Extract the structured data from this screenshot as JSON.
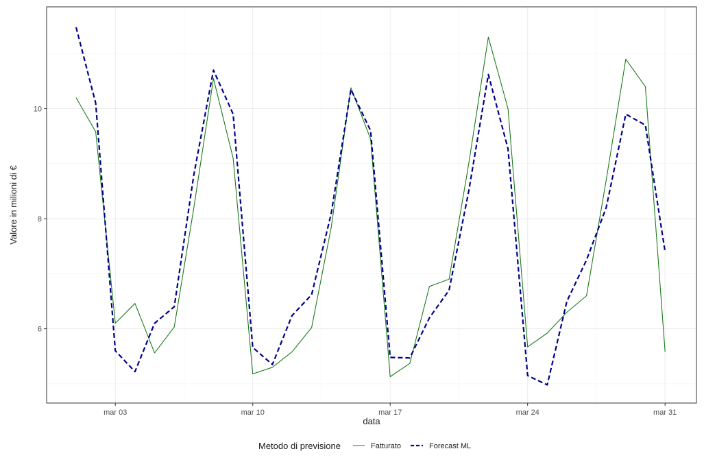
{
  "chart_data": {
    "type": "line",
    "xlabel": "data",
    "ylabel": "Valore in milioni di €",
    "x_start_date": "2025-03-01",
    "x_tick_labels": [
      "mar 03",
      "mar 10",
      "mar 17",
      "mar 24",
      "mar 31"
    ],
    "x_tick_days": [
      2,
      9,
      16,
      23,
      30
    ],
    "xlim_days": [
      -1.5,
      31.6
    ],
    "y_ticks": [
      6,
      8,
      10
    ],
    "ylim": [
      4.65,
      11.85
    ],
    "grid": true,
    "legend": {
      "title": "Metodo di previsione",
      "position": "bottom",
      "entries": [
        "Fatturato",
        "Forecast ML"
      ]
    },
    "series": [
      {
        "name": "Fatturato",
        "color": "#1b7a1b",
        "style": "solid",
        "x_days": [
          0,
          1,
          2,
          3,
          4,
          5,
          6,
          7,
          8,
          9,
          10,
          11,
          12,
          13,
          14,
          15,
          16,
          17,
          18,
          19,
          20,
          21,
          22,
          23,
          24,
          25,
          26,
          27,
          28,
          29,
          30
        ],
        "values": [
          10.2,
          9.58,
          6.1,
          6.46,
          5.56,
          6.03,
          8.2,
          10.55,
          9.1,
          5.18,
          5.3,
          5.58,
          6.02,
          7.85,
          10.38,
          9.45,
          5.13,
          5.37,
          6.77,
          6.9,
          9.0,
          11.3,
          10.0,
          5.67,
          5.92,
          6.3,
          6.6,
          8.7,
          10.9,
          10.4,
          5.58
        ]
      },
      {
        "name": "Forecast ML",
        "color": "#00008b",
        "style": "dashed",
        "x_days": [
          0,
          1,
          2,
          3,
          4,
          5,
          6,
          7,
          8,
          9,
          10,
          11,
          12,
          13,
          14,
          15,
          16,
          17,
          18,
          19,
          20,
          21,
          22,
          23,
          24,
          25,
          26,
          27,
          28,
          29,
          30
        ],
        "values": [
          11.48,
          10.1,
          5.6,
          5.22,
          6.1,
          6.4,
          8.8,
          10.7,
          9.9,
          5.66,
          5.35,
          6.24,
          6.62,
          8.1,
          10.35,
          9.6,
          5.48,
          5.47,
          6.2,
          6.7,
          8.5,
          10.62,
          9.27,
          5.15,
          4.98,
          6.5,
          7.25,
          8.2,
          9.9,
          9.7,
          7.4
        ]
      }
    ]
  }
}
